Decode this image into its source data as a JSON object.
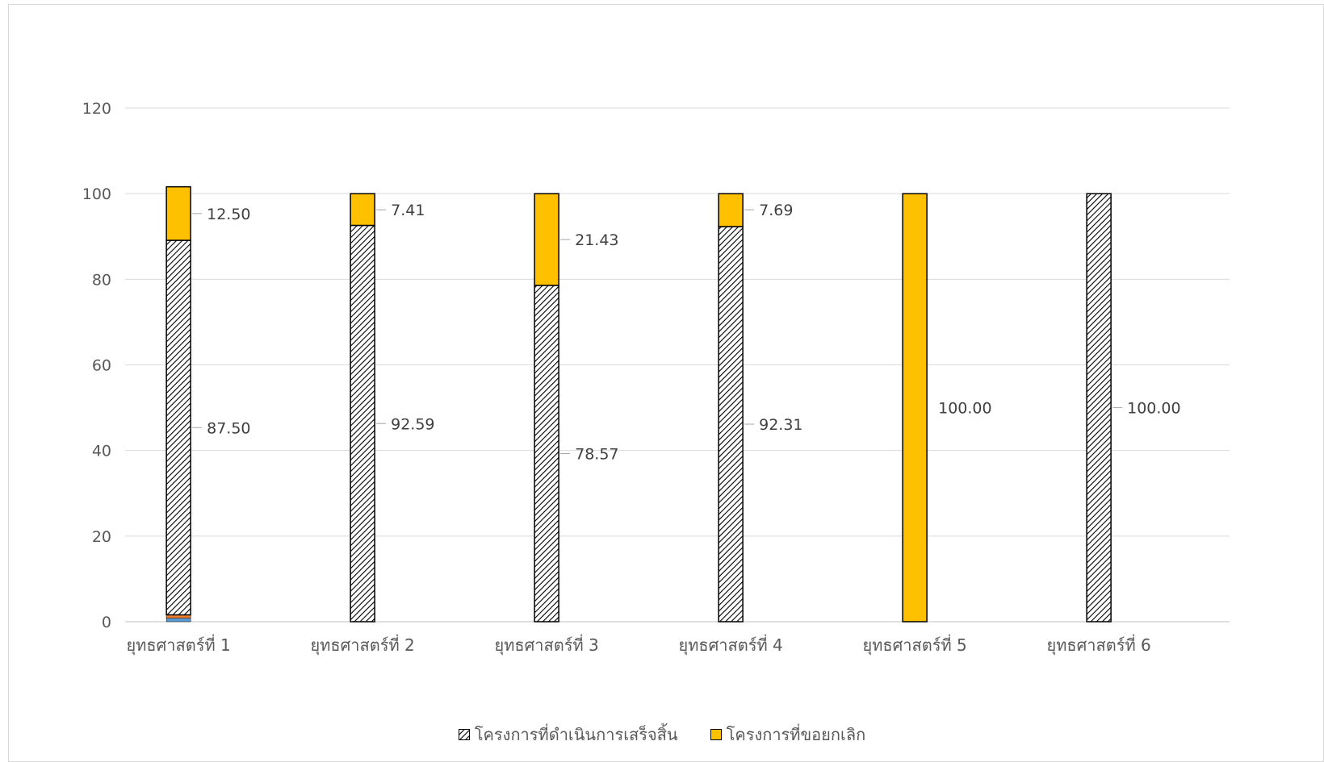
{
  "chart_data": {
    "type": "bar",
    "stacked": true,
    "categories": [
      "ยุทธศาสตร์ที่ 1",
      "ยุทธศาสตร์ที่ 2",
      "ยุทธศาสตร์ที่ 3",
      "ยุทธศาสตร์ที่ 4",
      "ยุทธศาสตร์ที่ 5",
      "ยุทธศาสตร์ที่ 6"
    ],
    "series": [
      {
        "name": "โครงการที่ดำเนินการเสร็จสิ้น",
        "values": [
          87.5,
          92.59,
          78.57,
          92.31,
          0,
          100.0
        ],
        "labels": [
          "87.50",
          "92.59",
          "78.57",
          "92.31",
          "",
          "100.00"
        ],
        "pattern": "hatch"
      },
      {
        "name": "โครงการที่ขอยกเลิก",
        "values": [
          12.5,
          7.41,
          21.43,
          7.69,
          100.0,
          0
        ],
        "labels": [
          "12.50",
          "7.41",
          "21.43",
          "7.69",
          "100.00",
          ""
        ],
        "color": "#FFC000"
      }
    ],
    "extra_bottom_segments": [
      {
        "category_index": 0,
        "values": [
          0.8,
          0.8
        ],
        "colors": [
          "#5B9BD5",
          "#ED7D31"
        ]
      }
    ],
    "ylim": [
      0,
      120
    ],
    "yticks": [
      0,
      20,
      40,
      60,
      80,
      100,
      120
    ],
    "grid": true,
    "legend_position": "bottom"
  }
}
